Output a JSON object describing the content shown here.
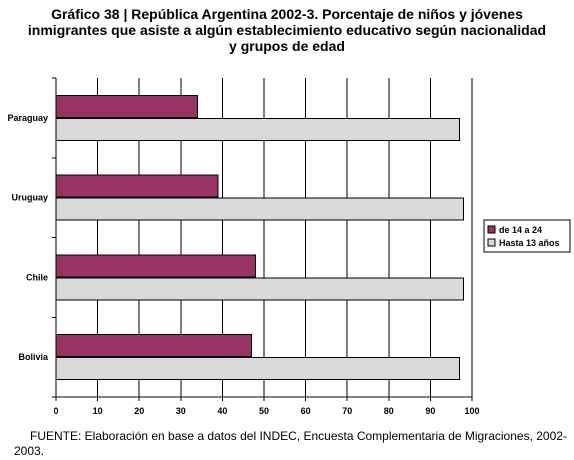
{
  "chart_data": {
    "type": "bar",
    "orientation": "horizontal",
    "title_lines": [
      "Gráfico 38 | República Argentina 2002-3. Porcentaje de niños y jóvenes",
      "inmigrantes que asiste a algún establecimiento educativo según nacionalidad",
      "y grupos de edad"
    ],
    "categories": [
      "Paraguay",
      "Uruguay",
      "Chile",
      "Bolivia"
    ],
    "series": [
      {
        "name": "de 14 a 24",
        "color": "#993366",
        "values": [
          34,
          39,
          48,
          47
        ]
      },
      {
        "name": "Hasta 13 años",
        "color": "#d9d9d9",
        "values": [
          97,
          98,
          98,
          97
        ]
      }
    ],
    "xlim": [
      0,
      100
    ],
    "xticks": [
      0,
      10,
      20,
      30,
      40,
      50,
      60,
      70,
      80,
      90,
      100
    ],
    "grid": true,
    "legend_position": "right",
    "source": "FUENTE: Elaboración en base a datos del INDEC, Encuesta Complementaria de Migraciones, 2002-2003."
  }
}
